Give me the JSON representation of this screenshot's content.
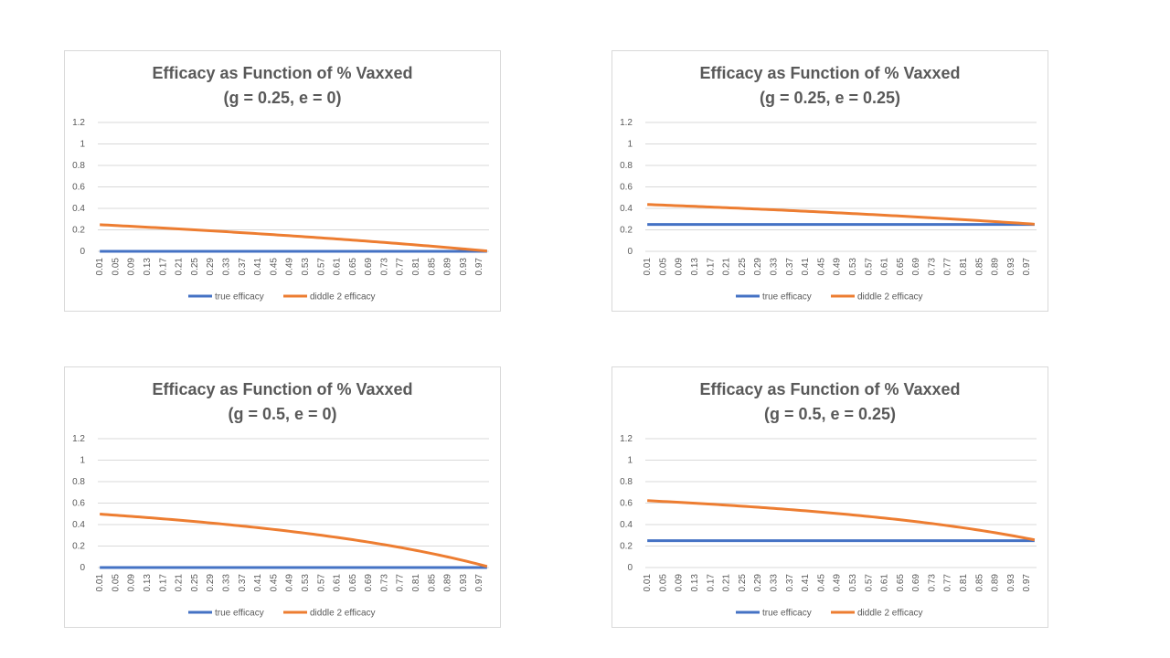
{
  "colors": {
    "true_efficacy": "#4472c4",
    "diddle_efficacy": "#ed7d31",
    "gridline": "#d9d9d9",
    "text": "#595959"
  },
  "chart_data": [
    {
      "type": "line",
      "title": "Efficacy as Function of % Vaxxed",
      "subtitle": "(g = 0.25, e = 0)",
      "ylim": [
        0,
        1.2
      ],
      "yticks": [
        "0",
        "0.2",
        "0.4",
        "0.6",
        "0.8",
        "1",
        "1.2"
      ],
      "xtick_labels": [
        "0.01",
        "0.05",
        "0.09",
        "0.13",
        "0.17",
        "0.21",
        "0.25",
        "0.29",
        "0.33",
        "0.37",
        "0.41",
        "0.45",
        "0.49",
        "0.53",
        "0.57",
        "0.61",
        "0.65",
        "0.69",
        "0.73",
        "0.77",
        "0.81",
        "0.85",
        "0.89",
        "0.93",
        "0.97"
      ],
      "x_start": 0.01,
      "x_end": 0.99,
      "x_step": 0.01,
      "grid": true,
      "legend_position": "bottom",
      "series": [
        {
          "name": "true efficacy",
          "color": "#4472c4",
          "g": 0.25,
          "e": 0
        },
        {
          "name": "diddle 2 efficacy",
          "color": "#ed7d31",
          "g": 0.25,
          "e": 0
        }
      ]
    },
    {
      "type": "line",
      "title": "Efficacy as Function of % Vaxxed",
      "subtitle": "(g = 0.25, e = 0.25)",
      "ylim": [
        0,
        1.2
      ],
      "yticks": [
        "0",
        "0.2",
        "0.4",
        "0.6",
        "0.8",
        "1",
        "1.2"
      ],
      "xtick_labels": [
        "0.01",
        "0.05",
        "0.09",
        "0.13",
        "0.17",
        "0.21",
        "0.25",
        "0.29",
        "0.33",
        "0.37",
        "0.41",
        "0.45",
        "0.49",
        "0.53",
        "0.57",
        "0.61",
        "0.65",
        "0.69",
        "0.73",
        "0.77",
        "0.81",
        "0.85",
        "0.89",
        "0.93",
        "0.97"
      ],
      "x_start": 0.01,
      "x_end": 0.99,
      "x_step": 0.01,
      "grid": true,
      "legend_position": "bottom",
      "series": [
        {
          "name": "true efficacy",
          "color": "#4472c4",
          "g": 0.25,
          "e": 0.25
        },
        {
          "name": "diddle 2 efficacy",
          "color": "#ed7d31",
          "g": 0.25,
          "e": 0.25
        }
      ]
    },
    {
      "type": "line",
      "title": "Efficacy as Function of % Vaxxed",
      "subtitle": "(g = 0.5, e = 0)",
      "ylim": [
        0,
        1.2
      ],
      "yticks": [
        "0",
        "0.2",
        "0.4",
        "0.6",
        "0.8",
        "1",
        "1.2"
      ],
      "xtick_labels": [
        "0.01",
        "0.05",
        "0.09",
        "0.13",
        "0.17",
        "0.21",
        "0.25",
        "0.29",
        "0.33",
        "0.37",
        "0.41",
        "0.45",
        "0.49",
        "0.53",
        "0.57",
        "0.61",
        "0.65",
        "0.69",
        "0.73",
        "0.77",
        "0.81",
        "0.85",
        "0.89",
        "0.93",
        "0.97"
      ],
      "x_start": 0.01,
      "x_end": 0.99,
      "x_step": 0.01,
      "grid": true,
      "legend_position": "bottom",
      "series": [
        {
          "name": "true efficacy",
          "color": "#4472c4",
          "g": 0.5,
          "e": 0
        },
        {
          "name": "diddle 2 efficacy",
          "color": "#ed7d31",
          "g": 0.5,
          "e": 0
        }
      ]
    },
    {
      "type": "line",
      "title": "Efficacy as Function of % Vaxxed",
      "subtitle": "(g = 0.5, e = 0.25)",
      "ylim": [
        0,
        1.2
      ],
      "yticks": [
        "0",
        "0.2",
        "0.4",
        "0.6",
        "0.8",
        "1",
        "1.2"
      ],
      "xtick_labels": [
        "0.01",
        "0.05",
        "0.09",
        "0.13",
        "0.17",
        "0.21",
        "0.25",
        "0.29",
        "0.33",
        "0.37",
        "0.41",
        "0.45",
        "0.49",
        "0.53",
        "0.57",
        "0.61",
        "0.65",
        "0.69",
        "0.73",
        "0.77",
        "0.81",
        "0.85",
        "0.89",
        "0.93",
        "0.97"
      ],
      "x_start": 0.01,
      "x_end": 0.99,
      "x_step": 0.01,
      "grid": true,
      "legend_position": "bottom",
      "series": [
        {
          "name": "true efficacy",
          "color": "#4472c4",
          "g": 0.5,
          "e": 0.25
        },
        {
          "name": "diddle 2 efficacy",
          "color": "#ed7d31",
          "g": 0.5,
          "e": 0.25
        }
      ]
    }
  ]
}
